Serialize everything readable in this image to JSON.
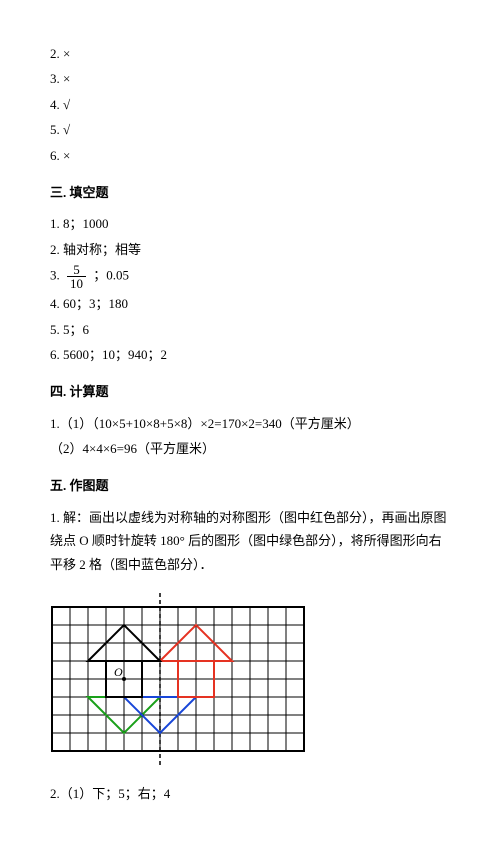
{
  "tf": {
    "i2": "2. ×",
    "i3": "3. ×",
    "i4": "4. √",
    "i5": "5. √",
    "i6": "6. ×"
  },
  "s3": {
    "heading": "三. 填空题",
    "i1": "1. 8；1000",
    "i2": "2. 轴对称；相等",
    "i3_prefix": "3. ",
    "i3_frac_num": "5",
    "i3_frac_den": "10",
    "i3_suffix": "；0.05",
    "i4": "4. 60；3；180",
    "i5": "5. 5；6",
    "i6": "6. 5600；10；940；2"
  },
  "s4": {
    "heading": "四. 计算题",
    "i1": "1.（1）（10×5+10×8+5×8）×2=170×2=340（平方厘米）",
    "i2": "（2）4×4×6=96（平方厘米）"
  },
  "s5": {
    "heading": "五. 作图题",
    "i1": "1. 解：画出以虚线为对称轴的对称图形（图中红色部分），再画出原图绕点 O 顺时针旋转 180° 后的图形（图中绿色部分），将所得图形向右平移 2 格（图中蓝色部分）．",
    "i2": "2.（1）下；5；右；4"
  },
  "diagram": {
    "cols": 14,
    "rows": 8,
    "cell": 18,
    "border_color": "#000000",
    "bg_color": "#ffffff",
    "grid_color": "#000000",
    "grid_stroke": 1,
    "border_stroke": 2,
    "axis_dash": "4,3",
    "axis_stroke": 1.5,
    "label_O": "O",
    "label_fontsize": 12,
    "shapes": {
      "black": {
        "stroke": "#000000",
        "stroke_width": 2,
        "fill": "none",
        "roof": [
          [
            2,
            3
          ],
          [
            4,
            1
          ],
          [
            6,
            3
          ]
        ],
        "body": [
          [
            3,
            3
          ],
          [
            5,
            3
          ],
          [
            5,
            5
          ],
          [
            3,
            5
          ]
        ]
      },
      "red": {
        "stroke": "#e53222",
        "stroke_width": 2,
        "fill": "none",
        "roof": [
          [
            6,
            3
          ],
          [
            8,
            1
          ],
          [
            10,
            3
          ]
        ],
        "body": [
          [
            7,
            3
          ],
          [
            9,
            3
          ],
          [
            9,
            5
          ],
          [
            7,
            5
          ]
        ]
      },
      "green": {
        "stroke": "#1aa01a",
        "stroke_width": 2,
        "fill": "none",
        "roof": [
          [
            2,
            5
          ],
          [
            4,
            7
          ],
          [
            6,
            5
          ]
        ],
        "body": [
          [
            3,
            3
          ],
          [
            5,
            3
          ],
          [
            5,
            5
          ],
          [
            3,
            5
          ]
        ]
      },
      "blue": {
        "stroke": "#1846d8",
        "stroke_width": 2,
        "fill": "none",
        "roof": [
          [
            4,
            5
          ],
          [
            6,
            7
          ],
          [
            8,
            5
          ]
        ],
        "body": [
          [
            5,
            3
          ],
          [
            7,
            3
          ],
          [
            7,
            5
          ],
          [
            5,
            5
          ]
        ]
      }
    }
  }
}
